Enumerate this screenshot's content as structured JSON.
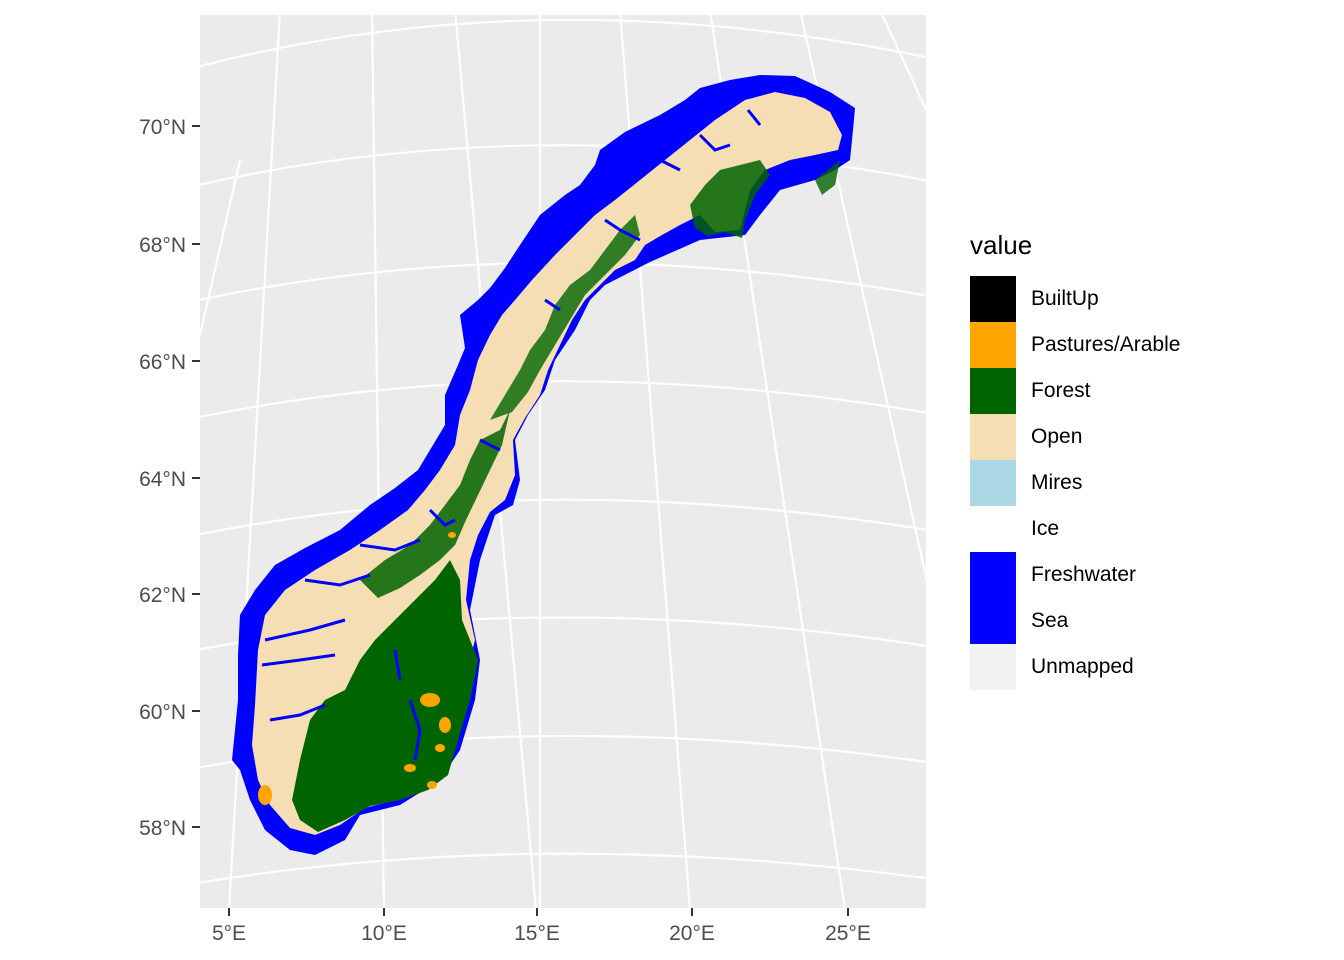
{
  "map": {
    "x_ticks": [
      "5°E",
      "10°E",
      "15°E",
      "20°E",
      "25°E"
    ],
    "y_ticks": [
      "70°N",
      "68°N",
      "66°N",
      "64°N",
      "62°N",
      "60°N",
      "58°N"
    ],
    "panel_background": "#ebebeb",
    "grid_color": "#ffffff"
  },
  "legend": {
    "title": "value",
    "items": [
      {
        "label": "BuiltUp",
        "color": "#000000"
      },
      {
        "label": "Pastures/Arable",
        "color": "#ffa500"
      },
      {
        "label": "Forest",
        "color": "#006400"
      },
      {
        "label": "Open",
        "color": "#f5deb3"
      },
      {
        "label": "Mires",
        "color": "#add8e6"
      },
      {
        "label": "Ice",
        "color": "#ffffff"
      },
      {
        "label": "Freshwater",
        "color": "#0000ff"
      },
      {
        "label": "Sea",
        "color": "#0000ff"
      },
      {
        "label": "Unmapped",
        "color": "#f2f2f2"
      }
    ]
  }
}
